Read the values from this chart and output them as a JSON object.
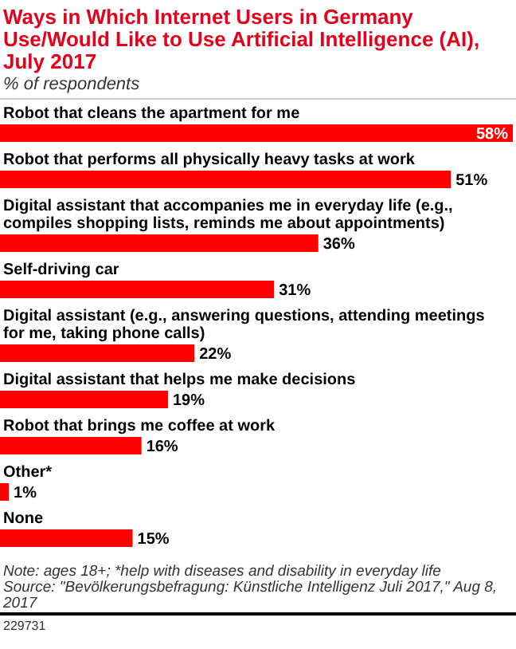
{
  "chart_data": {
    "type": "bar",
    "orientation": "horizontal",
    "title": "Ways in Which Internet Users in Germany Use/Would Like to Use Artificial Intelligence (AI), July 2017",
    "subtitle": "% of respondents",
    "categories": [
      "Robot that cleans the apartment for me",
      "Robot that performs all physically heavy tasks at work",
      "Digital assistant that accompanies me in everyday life (e.g., compiles shopping lists, reminds me about appointments)",
      "Self-driving car",
      "Digital assistant (e.g., answering questions, attending meetings for me, taking phone calls)",
      "Digital assistant that helps me make decisions",
      "Robot that brings me coffee at work",
      "Other*",
      "None"
    ],
    "values": [
      58,
      51,
      36,
      31,
      22,
      19,
      16,
      1,
      15
    ],
    "value_labels": [
      "58%",
      "51%",
      "36%",
      "31%",
      "22%",
      "19%",
      "16%",
      "1%",
      "15%"
    ],
    "color": "#ff0000",
    "annotations": [
      "Note: ages 18+; *help with diseases and disability in everyday life",
      "Source: \"Bevölkerungsbefragung: Künstliche Intelligenz Juli 2017,\" Aug 8, 2017",
      "229731"
    ]
  }
}
